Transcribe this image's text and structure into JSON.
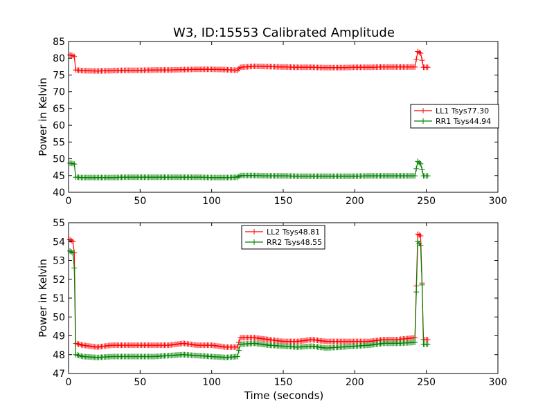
{
  "chart_data": [
    {
      "type": "line",
      "title": "W3, ID:15553 Calibrated Amplitude",
      "xlabel": "",
      "ylabel": "Power in Kelvin",
      "xlim": [
        0,
        300
      ],
      "ylim": [
        40,
        85
      ],
      "xticks": [
        "0",
        "50",
        "100",
        "150",
        "200",
        "250",
        "300"
      ],
      "yticks": [
        "40",
        "45",
        "50",
        "55",
        "60",
        "65",
        "70",
        "75",
        "80",
        "85"
      ],
      "legend_position": "center-right",
      "grid": false,
      "series": [
        {
          "name": "LL1 Tsys77.30",
          "color": "#ff0000",
          "points": [
            [
              1,
              81.0
            ],
            [
              3,
              80.8
            ],
            [
              4,
              80.5
            ],
            [
              5,
              76.5
            ],
            [
              10,
              76.3
            ],
            [
              20,
              76.2
            ],
            [
              30,
              76.3
            ],
            [
              40,
              76.4
            ],
            [
              50,
              76.4
            ],
            [
              60,
              76.5
            ],
            [
              70,
              76.5
            ],
            [
              80,
              76.6
            ],
            [
              90,
              76.7
            ],
            [
              100,
              76.7
            ],
            [
              110,
              76.6
            ],
            [
              118,
              76.4
            ],
            [
              120,
              77.3
            ],
            [
              130,
              77.6
            ],
            [
              140,
              77.5
            ],
            [
              150,
              77.4
            ],
            [
              160,
              77.3
            ],
            [
              170,
              77.3
            ],
            [
              180,
              77.2
            ],
            [
              190,
              77.2
            ],
            [
              200,
              77.3
            ],
            [
              210,
              77.3
            ],
            [
              220,
              77.4
            ],
            [
              230,
              77.4
            ],
            [
              242,
              77.4
            ],
            [
              244,
              82.0
            ],
            [
              246,
              81.5
            ],
            [
              248,
              77.3
            ],
            [
              251,
              77.3
            ]
          ]
        },
        {
          "name": "RR1 Tsys44.94",
          "color": "#008000",
          "points": [
            [
              1,
              48.7
            ],
            [
              3,
              48.6
            ],
            [
              4,
              48.4
            ],
            [
              5,
              44.5
            ],
            [
              10,
              44.4
            ],
            [
              20,
              44.4
            ],
            [
              30,
              44.4
            ],
            [
              40,
              44.5
            ],
            [
              50,
              44.5
            ],
            [
              60,
              44.5
            ],
            [
              70,
              44.5
            ],
            [
              80,
              44.5
            ],
            [
              90,
              44.5
            ],
            [
              100,
              44.4
            ],
            [
              110,
              44.4
            ],
            [
              118,
              44.5
            ],
            [
              120,
              45.0
            ],
            [
              130,
              45.0
            ],
            [
              140,
              44.9
            ],
            [
              150,
              44.9
            ],
            [
              160,
              44.8
            ],
            [
              170,
              44.8
            ],
            [
              180,
              44.8
            ],
            [
              190,
              44.8
            ],
            [
              200,
              44.8
            ],
            [
              210,
              44.9
            ],
            [
              220,
              44.9
            ],
            [
              230,
              44.9
            ],
            [
              242,
              44.9
            ],
            [
              244,
              49.2
            ],
            [
              246,
              48.5
            ],
            [
              248,
              44.9
            ],
            [
              251,
              44.9
            ]
          ]
        }
      ]
    },
    {
      "type": "line",
      "title": "",
      "xlabel": "Time (seconds)",
      "ylabel": "Power in Kelvin",
      "xlim": [
        0,
        300
      ],
      "ylim": [
        47,
        55
      ],
      "xticks": [
        "0",
        "50",
        "100",
        "150",
        "200",
        "250",
        "300"
      ],
      "yticks": [
        "47",
        "48",
        "49",
        "50",
        "51",
        "52",
        "53",
        "54",
        "55"
      ],
      "legend_position": "upper-center",
      "grid": false,
      "series": [
        {
          "name": "LL2 Tsys48.81",
          "color": "#ff0000",
          "points": [
            [
              1,
              54.1
            ],
            [
              3,
              54.0
            ],
            [
              4,
              53.4
            ],
            [
              5,
              48.6
            ],
            [
              10,
              48.5
            ],
            [
              20,
              48.4
            ],
            [
              30,
              48.5
            ],
            [
              40,
              48.5
            ],
            [
              50,
              48.5
            ],
            [
              60,
              48.5
            ],
            [
              70,
              48.5
            ],
            [
              80,
              48.6
            ],
            [
              90,
              48.5
            ],
            [
              100,
              48.5
            ],
            [
              110,
              48.4
            ],
            [
              118,
              48.4
            ],
            [
              120,
              48.9
            ],
            [
              130,
              48.9
            ],
            [
              140,
              48.8
            ],
            [
              150,
              48.7
            ],
            [
              160,
              48.7
            ],
            [
              170,
              48.8
            ],
            [
              180,
              48.7
            ],
            [
              190,
              48.7
            ],
            [
              200,
              48.7
            ],
            [
              210,
              48.7
            ],
            [
              220,
              48.8
            ],
            [
              230,
              48.8
            ],
            [
              242,
              48.9
            ],
            [
              244,
              54.4
            ],
            [
              246,
              54.3
            ],
            [
              247,
              51.8
            ],
            [
              248,
              48.8
            ],
            [
              251,
              48.8
            ]
          ]
        },
        {
          "name": "RR2 Tsys48.55",
          "color": "#008000",
          "points": [
            [
              1,
              53.5
            ],
            [
              3,
              53.4
            ],
            [
              4,
              52.6
            ],
            [
              5,
              48.0
            ],
            [
              10,
              47.9
            ],
            [
              20,
              47.85
            ],
            [
              30,
              47.9
            ],
            [
              40,
              47.9
            ],
            [
              50,
              47.9
            ],
            [
              60,
              47.9
            ],
            [
              70,
              47.95
            ],
            [
              80,
              48.0
            ],
            [
              90,
              47.95
            ],
            [
              100,
              47.9
            ],
            [
              110,
              47.85
            ],
            [
              118,
              47.9
            ],
            [
              120,
              48.55
            ],
            [
              130,
              48.6
            ],
            [
              140,
              48.5
            ],
            [
              150,
              48.45
            ],
            [
              160,
              48.4
            ],
            [
              170,
              48.45
            ],
            [
              180,
              48.35
            ],
            [
              190,
              48.4
            ],
            [
              200,
              48.45
            ],
            [
              210,
              48.5
            ],
            [
              220,
              48.6
            ],
            [
              230,
              48.6
            ],
            [
              242,
              48.65
            ],
            [
              244,
              54.0
            ],
            [
              246,
              53.8
            ],
            [
              247,
              51.7
            ],
            [
              248,
              48.55
            ],
            [
              251,
              48.55
            ]
          ]
        }
      ]
    }
  ]
}
